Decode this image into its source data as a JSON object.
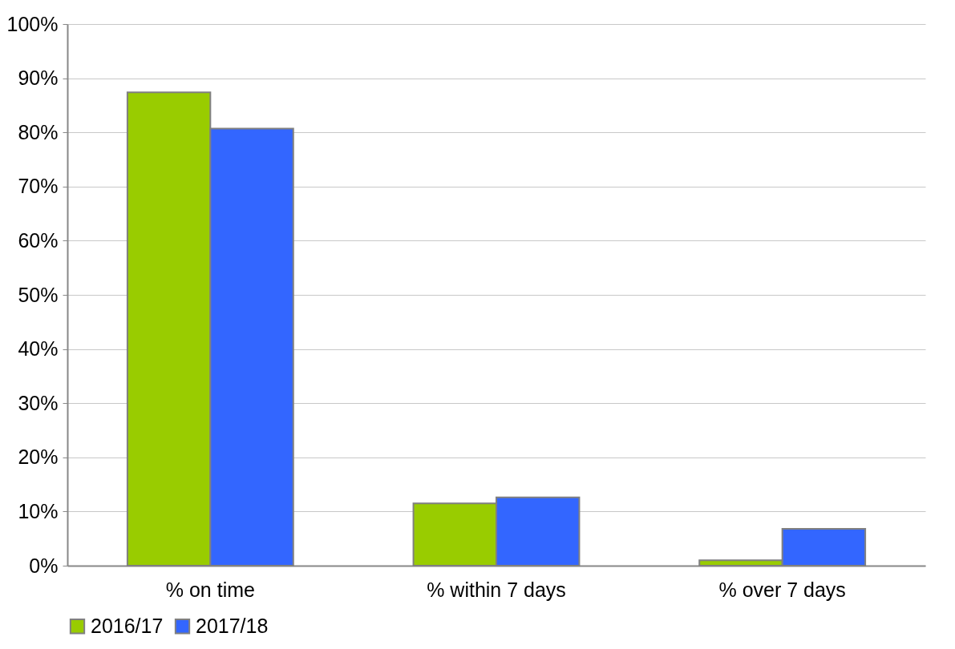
{
  "chart_data": {
    "type": "bar",
    "categories": [
      "% on time",
      "% within 7 days",
      "% over 7 days"
    ],
    "series": [
      {
        "name": "2016/17",
        "color": "#99cc00",
        "values": [
          87.4,
          11.5,
          1.0
        ]
      },
      {
        "name": "2017/18",
        "color": "#3366ff",
        "values": [
          80.7,
          12.6,
          6.8
        ]
      }
    ],
    "ylim": [
      0,
      100
    ],
    "yticks": [
      {
        "value": 0,
        "label": "0%"
      },
      {
        "value": 10,
        "label": "10%"
      },
      {
        "value": 20,
        "label": "20%"
      },
      {
        "value": 30,
        "label": "30%"
      },
      {
        "value": 40,
        "label": "40%"
      },
      {
        "value": 50,
        "label": "50%"
      },
      {
        "value": 60,
        "label": "60%"
      },
      {
        "value": 70,
        "label": "70%"
      },
      {
        "value": 80,
        "label": "80%"
      },
      {
        "value": 90,
        "label": "90%"
      },
      {
        "value": 100,
        "label": "100%"
      }
    ],
    "grid": "y",
    "legend": "bottom"
  }
}
